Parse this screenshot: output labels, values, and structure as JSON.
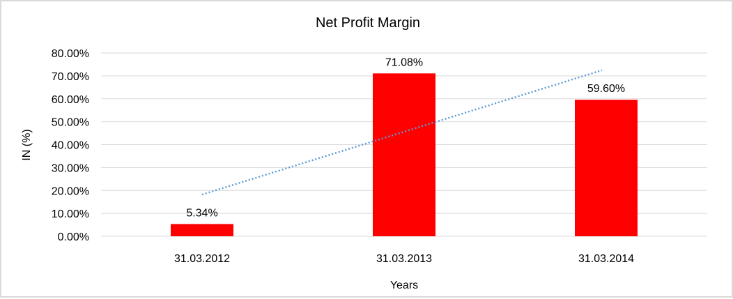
{
  "chart_data": {
    "type": "bar",
    "title": "Net Profit Margin",
    "xlabel": "Years",
    "ylabel": "IN (%)",
    "categories": [
      "31.03.2012",
      "31.03.2013",
      "31.03.2014"
    ],
    "values": [
      5.34,
      71.08,
      59.6
    ],
    "data_labels": [
      "5.34%",
      "71.08%",
      "59.60%"
    ],
    "ylim": [
      0,
      80
    ],
    "yticks": [
      "0.00%",
      "10.00%",
      "20.00%",
      "30.00%",
      "40.00%",
      "50.00%",
      "60.00%",
      "70.00%",
      "80.00%"
    ],
    "grid": true,
    "trendline": {
      "type": "linear",
      "style": "dotted"
    },
    "colors": {
      "bar": "#ff0000",
      "trendline": "#5b9bd5",
      "grid": "#d9d9d9"
    }
  }
}
